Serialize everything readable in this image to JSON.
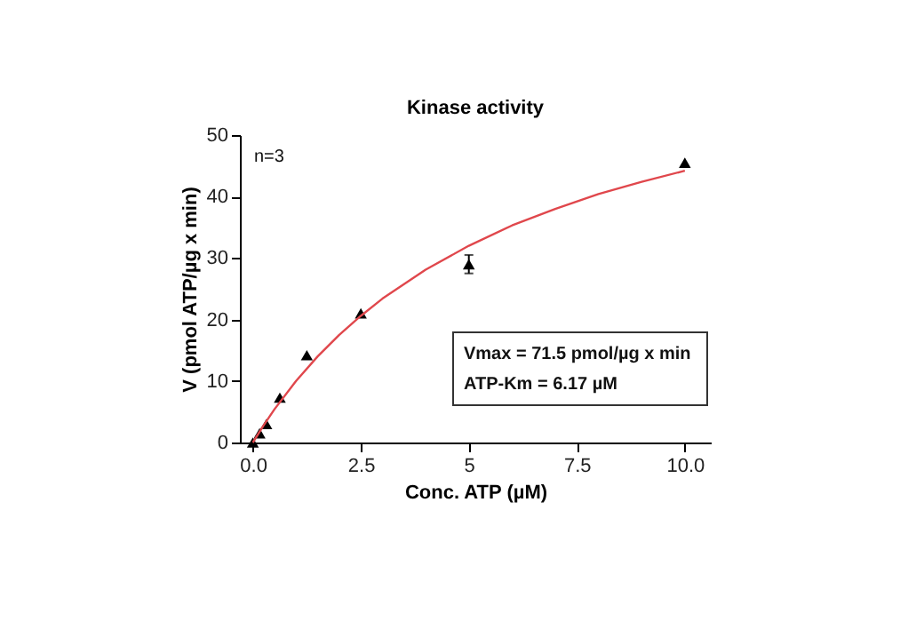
{
  "chart_data": {
    "type": "scatter",
    "title": "Kinase activity",
    "xlabel": "Conc. ATP (µM)",
    "ylabel": "V (pmol ATP/µg x min)",
    "annotations": [
      "n=3",
      "Vmax = 71.5 pmol/µg x min",
      "ATP-Km = 6.17 µM"
    ],
    "xlim": [
      -0.3,
      10.6
    ],
    "xticks": [
      {
        "value": 0,
        "label": "0.0"
      },
      2.5,
      5,
      7.5,
      {
        "value": 10,
        "label": "10.0"
      }
    ],
    "ylim": [
      0,
      50
    ],
    "yticks": [
      0,
      10,
      20,
      30,
      40,
      50
    ],
    "grid": false,
    "series": [
      {
        "type": "scatter",
        "color": "#000000",
        "marker": "triangle",
        "x": [
          0,
          0.156,
          0.3125,
          0.625,
          1.25,
          2.5,
          5,
          10
        ],
        "values": [
          0,
          1.5,
          3,
          7.3,
          14.2,
          21,
          29,
          45.5
        ],
        "errors": [
          null,
          null,
          null,
          null,
          null,
          null,
          1.5,
          null
        ]
      },
      {
        "type": "line",
        "color": "#e0474c",
        "line_style": "solid",
        "x": [
          0,
          0.25,
          0.5,
          1,
          1.5,
          2,
          2.5,
          3,
          4,
          5,
          6,
          7,
          8,
          9,
          10
        ],
        "values": [
          0,
          2.8,
          5.4,
          10.0,
          14.0,
          17.5,
          20.6,
          23.4,
          28.1,
          32.0,
          35.3,
          38.0,
          40.4,
          42.4,
          44.2
        ]
      }
    ]
  }
}
